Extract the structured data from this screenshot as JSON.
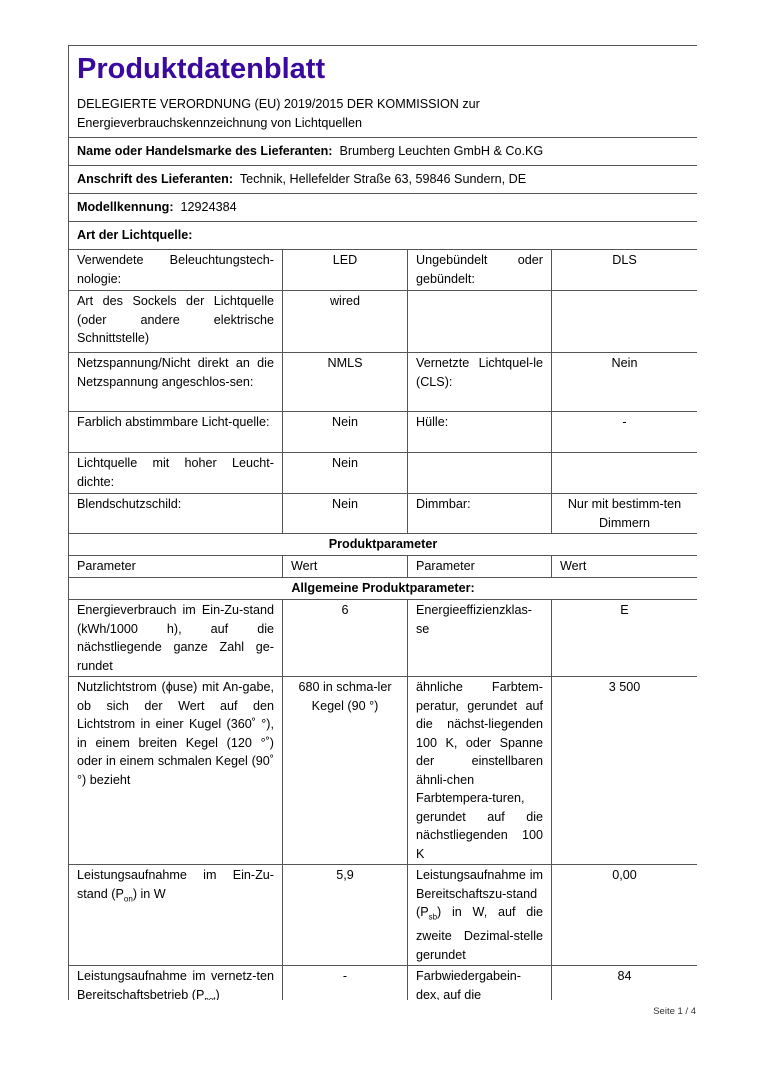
{
  "header": {
    "title": "Produktdatenblatt",
    "subtitle_line1": "DELEGIERTE VERORDNUNG (EU) 2019/2015 DER KOMMISSION zur",
    "subtitle_line2": "Energieverbrauchskennzeichnung von Lichtquellen",
    "accent_color": "#3a0a9e"
  },
  "supplier": {
    "name_label": "Name oder Handelsmarke des Lieferanten:",
    "name_value": "Brumberg Leuchten GmbH & Co.KG",
    "address_label": "Anschrift des Lieferanten:",
    "address_value": "Technik, Hellefelder Straße 63, 59846 Sundern, DE",
    "model_label": "Modellkennung:",
    "model_value": "12924384",
    "type_label": "Art der Lichtquelle:"
  },
  "light_source_rows": [
    [
      "Verwendete Beleuchtungstech-nologie:",
      "LED",
      "Ungebündelt oder gebündelt:",
      "DLS"
    ],
    [
      "Art des Sockels der Lichtquelle (oder andere elektrische Schnittstelle)",
      "wired",
      "",
      ""
    ],
    [
      "Netzspannung/Nicht direkt an die Netzspannung angeschlos-sen:",
      "NMLS",
      "Vernetzte Lichtquel-le (CLS):",
      "Nein"
    ],
    [
      "Farblich abstimmbare Licht-quelle:",
      "Nein",
      "Hülle:",
      "-"
    ],
    [
      "Lichtquelle mit hoher Leucht-dichte:",
      "Nein",
      "",
      ""
    ],
    [
      "Blendschutzschild:",
      "Nein",
      "Dimmbar:",
      "Nur mit bestimm-ten Dimmern"
    ]
  ],
  "product_params": {
    "section_title": "Produktparameter",
    "columns": [
      "Parameter",
      "Wert",
      "Parameter",
      "Wert"
    ],
    "general_title": "Allgemeine Produktparameter:",
    "rows": [
      [
        "Energieverbrauch im Ein-Zu-stand (kWh/1000 h), auf die nächstliegende ganze Zahl ge-rundet",
        "6",
        "Energieeffizienzklas-se",
        "E"
      ],
      [
        "Nutzlichtstrom (ϕuse) mit An-gabe, ob sich der Wert auf den Lichtstrom in einer Kugel (360˚ °), in einem breiten Kegel (120 °˚) oder in einem schmalen Kegel (90˚ °) bezieht",
        "680 in schma-ler Kegel (90 °)",
        "ähnliche Farbtem-peratur, gerundet auf die nächst-liegenden 100 K, oder Spanne der einstellbaren ähnli-chen Farbtempera-turen, gerundet auf die nächstliegenden 100 K",
        "3 500"
      ]
    ],
    "power_on": {
      "label_pre": "Leistungsaufnahme im Ein-Zu-stand (P",
      "label_sub": "on",
      "label_post": ") in W",
      "value": "5,9"
    },
    "power_sb": {
      "label_pre": "Leistungsaufnahme im Bereitschaftszu-stand (P",
      "label_sub": "sb",
      "label_post": ") in W, auf die zweite Dezimal-stelle gerundet",
      "value": "0,00"
    },
    "power_net": {
      "label_pre": "Leistungsaufnahme im vernetz-ten Bereitschaftsbetrieb (P",
      "label_sub": "net",
      "label_post": ")",
      "value": "-"
    },
    "cri": {
      "label": "Farbwiedergabein-dex, auf die",
      "value": "84"
    }
  },
  "footer": {
    "page_label": "Seite 1 / 4"
  }
}
